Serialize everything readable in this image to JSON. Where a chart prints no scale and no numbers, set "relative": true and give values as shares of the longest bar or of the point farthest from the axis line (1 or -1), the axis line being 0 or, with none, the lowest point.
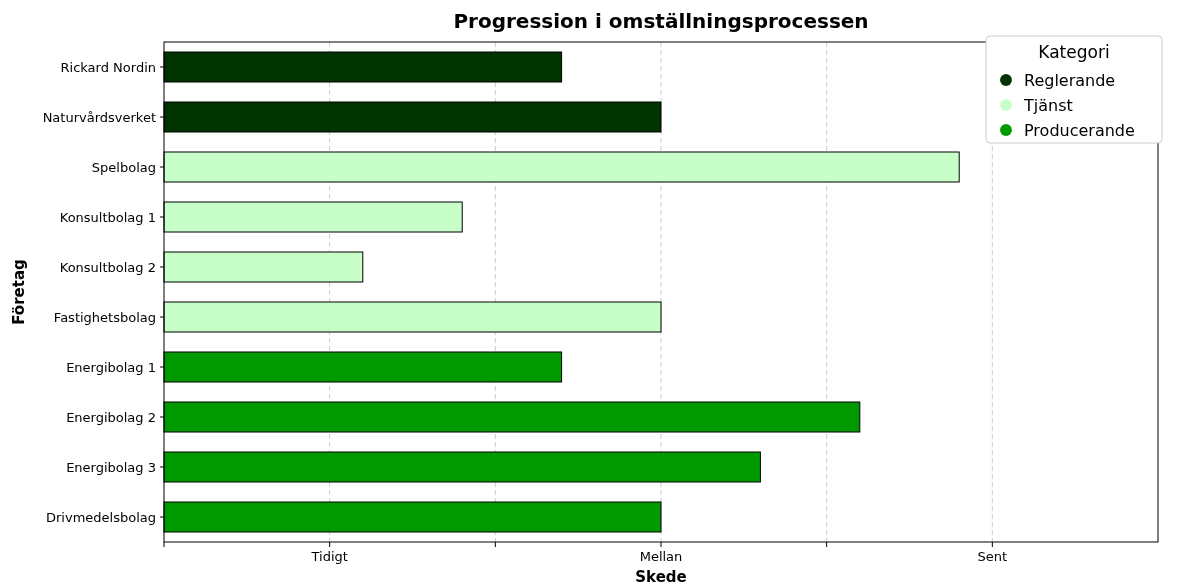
{
  "chart_data": {
    "type": "bar",
    "orientation": "horizontal",
    "title": "Progression i omställningsprocessen",
    "xlabel": "Skede",
    "ylabel": "Företag",
    "legend_title": "Kategori",
    "categories": [
      "Rickard Nordin",
      "Naturvårdsverket",
      "Spelbolag",
      "Konsultbolag 1",
      "Konsultbolag 2",
      "Fastighetsbolag",
      "Energibolag 1",
      "Energibolag 2",
      "Energibolag 3",
      "Drivmedelsbolag"
    ],
    "series": [
      {
        "name": "Reglerande",
        "color": "#003300",
        "values": [
          0.5,
          0.625,
          null,
          null,
          null,
          null,
          null,
          null,
          null,
          null
        ]
      },
      {
        "name": "Tjänst",
        "color": "#c8ffc8",
        "values": [
          null,
          null,
          1,
          0.375,
          0.25,
          0.625,
          null,
          null,
          null,
          null
        ]
      },
      {
        "name": "Producerande",
        "color": "#009900",
        "values": [
          null,
          null,
          null,
          null,
          null,
          null,
          0.5,
          0.875,
          0.75,
          0.625
        ]
      }
    ],
    "relative": true,
    "annotations": [
      "Tidigt",
      "Mellan",
      "Sent"
    ],
    "grid": "x",
    "legend": "top right",
    "marker": "circle"
  }
}
